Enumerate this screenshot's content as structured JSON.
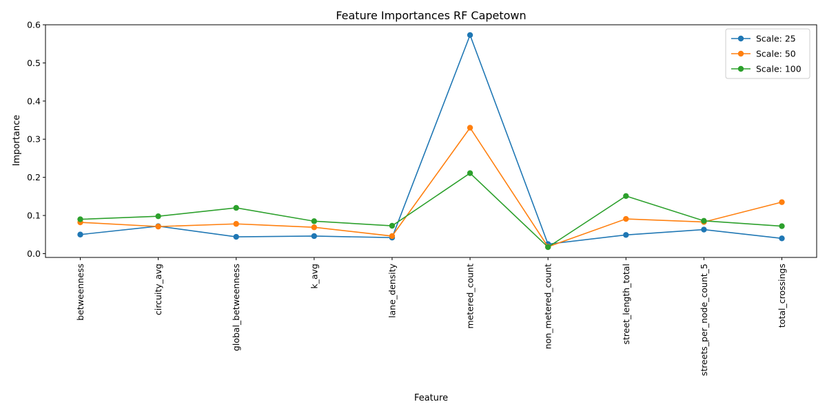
{
  "chart_data": {
    "type": "line",
    "title": "Feature Importances RF Capetown",
    "xlabel": "Feature",
    "ylabel": "Importance",
    "ylim": [
      -0.01,
      0.6
    ],
    "yticks": [
      "0.0",
      "0.1",
      "0.2",
      "0.3",
      "0.4",
      "0.5",
      "0.6"
    ],
    "categories": [
      "betweenness",
      "circuity_avg",
      "global_betweenness",
      "k_avg",
      "lane_density",
      "metered_count",
      "non_metered_count",
      "street_length_total",
      "streets_per_node_count_5",
      "total_crossings"
    ],
    "series": [
      {
        "name": "Scale: 25",
        "color": "#1f77b4",
        "values": [
          0.05,
          0.072,
          0.044,
          0.046,
          0.042,
          0.573,
          0.025,
          0.049,
          0.063,
          0.04
        ]
      },
      {
        "name": "Scale: 50",
        "color": "#ff7f0e",
        "values": [
          0.082,
          0.071,
          0.078,
          0.069,
          0.046,
          0.33,
          0.018,
          0.091,
          0.083,
          0.135
        ]
      },
      {
        "name": "Scale: 100",
        "color": "#2ca02c",
        "values": [
          0.09,
          0.098,
          0.12,
          0.085,
          0.073,
          0.211,
          0.017,
          0.151,
          0.086,
          0.072
        ]
      }
    ],
    "grid": false,
    "legend": "top-right"
  }
}
